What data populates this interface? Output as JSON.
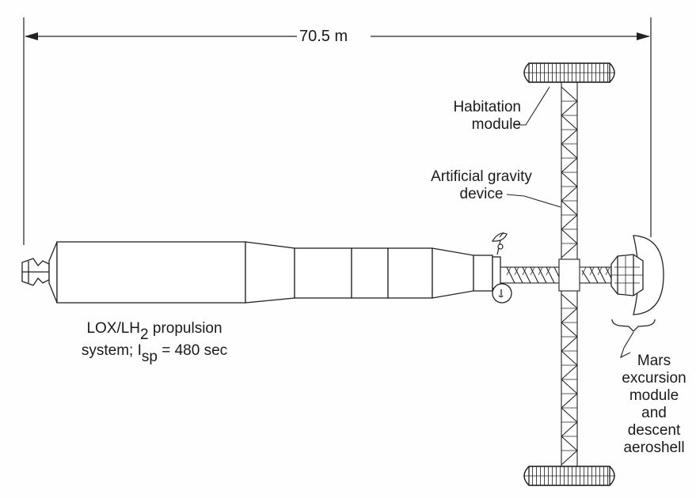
{
  "dimension": {
    "label": "70.5 m"
  },
  "labels": {
    "habitation": [
      "Habitation",
      "module"
    ],
    "gravity": [
      "Artificial gravity",
      "device"
    ],
    "propulsion": {
      "line1_main": "LOX/LH",
      "line1_sub": "2",
      "line1_tail": " propulsion",
      "line2_main": "system; I",
      "line2_sub": "sp",
      "line2_tail": " = 480 sec"
    },
    "mars": [
      "Mars",
      "excursion",
      "module",
      "and",
      "descent",
      "aeroshell"
    ]
  }
}
